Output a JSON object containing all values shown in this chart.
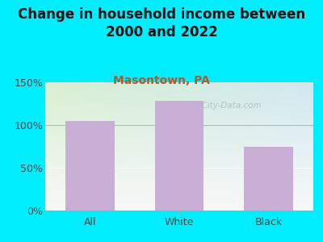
{
  "title": "Change in household income between\n2000 and 2022",
  "subtitle": "Masontown, PA",
  "categories": [
    "All",
    "White",
    "Black"
  ],
  "values": [
    105,
    128,
    75
  ],
  "bar_color": "#c9aed6",
  "title_fontsize": 12,
  "subtitle_fontsize": 10,
  "subtitle_color": "#b05a2a",
  "tick_label_fontsize": 9,
  "ylim": [
    0,
    150
  ],
  "yticks": [
    0,
    50,
    100,
    150
  ],
  "ytick_labels": [
    "0%",
    "50%",
    "100%",
    "150%"
  ],
  "bg_outer": "#00eeff",
  "hline_color": "#f08080",
  "hline_y": 100,
  "watermark": "City-Data.com",
  "watermark_color": "#b0b8c0"
}
